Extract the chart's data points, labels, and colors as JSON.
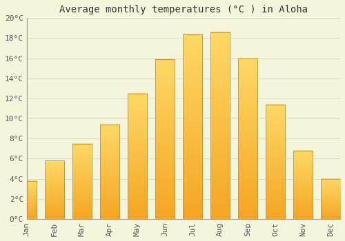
{
  "months": [
    "Jan",
    "Feb",
    "Mar",
    "Apr",
    "May",
    "Jun",
    "Jul",
    "Aug",
    "Sep",
    "Oct",
    "Nov",
    "Dec"
  ],
  "temperatures": [
    3.8,
    5.8,
    7.5,
    9.4,
    12.5,
    15.9,
    18.4,
    18.6,
    16.0,
    11.4,
    6.8,
    4.0
  ],
  "title": "Average monthly temperatures (°C ) in Aloha",
  "bar_color_bottom": "#F5A623",
  "bar_color_top": "#FFD966",
  "bar_edge_color": "#E09010",
  "background_color": "#F5F5DC",
  "grid_color": "#DDDDCC",
  "ylim": [
    0,
    20
  ],
  "yticks": [
    0,
    2,
    4,
    6,
    8,
    10,
    12,
    14,
    16,
    18,
    20
  ],
  "title_fontsize": 10,
  "tick_fontsize": 8,
  "font_family": "monospace"
}
